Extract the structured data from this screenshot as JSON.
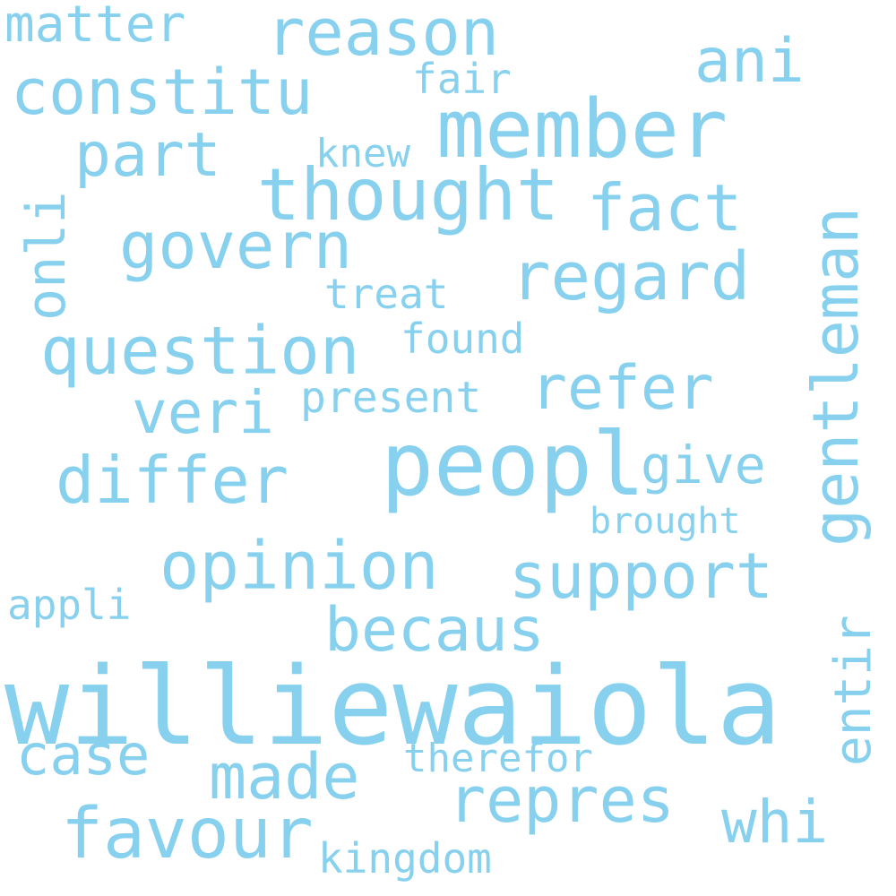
{
  "word_color": "#87d1ef",
  "background": "#ffffff",
  "words": {
    "williewaiola": "williewaiola",
    "peopl": "peopl",
    "member": "member",
    "thought": "thought",
    "question": "question",
    "gentleman": "gentleman",
    "govern": "govern",
    "constitu": "constitu",
    "reason": "reason",
    "opinion": "opinion",
    "support": "support",
    "differ": "differ",
    "favour": "favour",
    "regard": "regard",
    "fact": "fact",
    "part": "part",
    "refer": "refer",
    "repres": "repres",
    "becaus": "becaus",
    "made": "made",
    "veri": "veri",
    "case": "case",
    "entir": "entir",
    "ani": "ani",
    "onli": "onli",
    "give": "give",
    "whi": "whi",
    "matter": "matter",
    "present": "present",
    "kingdom": "kingdom",
    "found": "found",
    "therefor": "therefor",
    "treat": "treat",
    "knew": "knew",
    "fair": "fair",
    "appli": "appli",
    "brought": "brought"
  }
}
